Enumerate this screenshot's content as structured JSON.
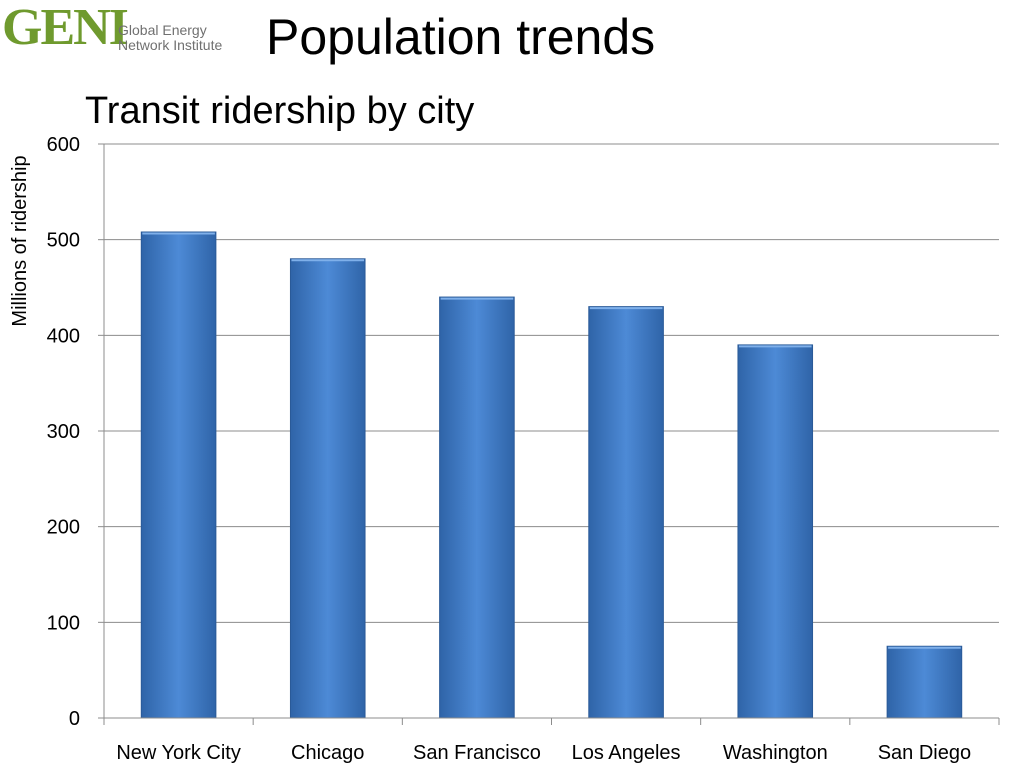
{
  "header": {
    "logo_mark": "GENI",
    "logo_line1": "Global Energy",
    "logo_line2": "Network Institute",
    "title": "Population trends"
  },
  "chart_data": {
    "type": "bar",
    "title": "Transit ridership by city",
    "xlabel": "",
    "ylabel": "Millions of ridership",
    "categories": [
      "New York City",
      "Chicago",
      "San Francisco",
      "Los Angeles",
      "Washington",
      "San Diego"
    ],
    "values": [
      508,
      480,
      440,
      430,
      390,
      75
    ],
    "ylim": [
      0,
      600
    ],
    "yticks": [
      0,
      100,
      200,
      300,
      400,
      500,
      600
    ],
    "grid": true,
    "legend": "none",
    "bar_color": "#3b78c4"
  }
}
